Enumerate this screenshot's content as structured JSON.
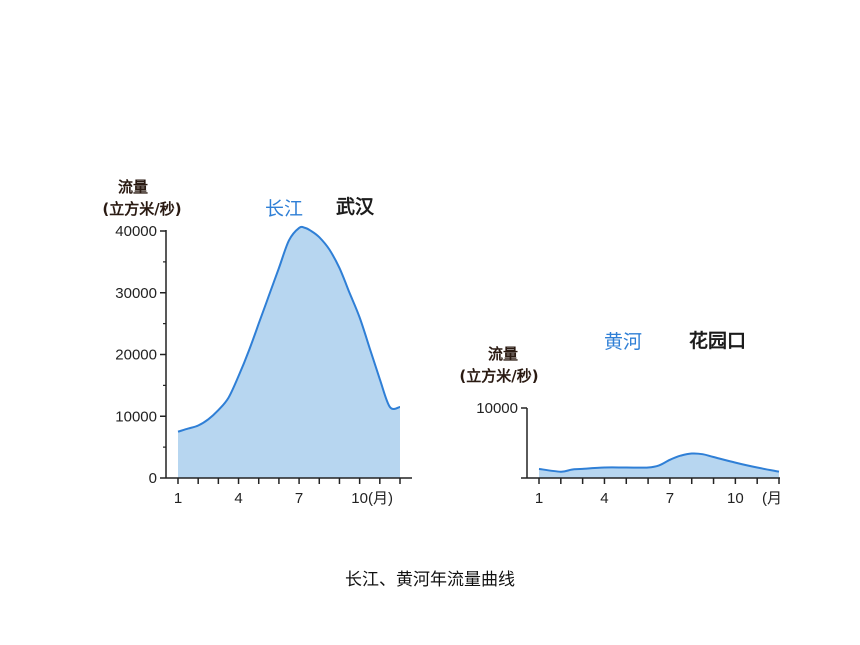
{
  "caption": "长江、黄河年流量曲线",
  "chart_data": [
    {
      "type": "area",
      "river": "长江",
      "station": "武汉",
      "ylabel_line1": "流量",
      "ylabel_line2": "(立方米/秒)",
      "xlabel": "(月)",
      "x": [
        1,
        1.5,
        2,
        2.5,
        3,
        3.5,
        4,
        4.5,
        5,
        5.5,
        6,
        6.5,
        7,
        7.3,
        7.6,
        8,
        8.5,
        9,
        9.5,
        10,
        10.5,
        11,
        11.5,
        12
      ],
      "y": [
        7500,
        8000,
        8500,
        9500,
        11000,
        13000,
        16500,
        20500,
        25000,
        29500,
        34000,
        38500,
        40500,
        40500,
        40000,
        39000,
        37000,
        34000,
        30000,
        26000,
        21000,
        16000,
        11500,
        11500
      ],
      "y_ticks": [
        {
          "v": 0,
          "label": "0"
        },
        {
          "v": 10000,
          "label": "10000"
        },
        {
          "v": 20000,
          "label": "20000"
        },
        {
          "v": 30000,
          "label": "30000"
        },
        {
          "v": 40000,
          "label": "40000"
        }
      ],
      "x_ticks": [
        {
          "v": 1,
          "label": "1"
        },
        {
          "v": 4,
          "label": "4"
        },
        {
          "v": 7,
          "label": "7"
        },
        {
          "v": 10,
          "label": "10"
        }
      ],
      "ylim": [
        0,
        40000
      ],
      "xlim": [
        1,
        12
      ],
      "line_color": "#2f7fd6",
      "fill_color": "#b7d6f0"
    },
    {
      "type": "area",
      "river": "黄河",
      "station": "花园口",
      "ylabel_line1": "流量",
      "ylabel_line2": "(立方米/秒)",
      "xlabel": "(月",
      "x": [
        1,
        2,
        2.5,
        3,
        4,
        5,
        6,
        6.5,
        7,
        7.5,
        8,
        8.5,
        9,
        10,
        11,
        12
      ],
      "y": [
        1300,
        900,
        1200,
        1300,
        1500,
        1500,
        1500,
        1800,
        2600,
        3200,
        3500,
        3400,
        3000,
        2200,
        1500,
        900
      ],
      "y_ticks": [
        {
          "v": 0,
          "label": ""
        },
        {
          "v": 10000,
          "label": "10000"
        }
      ],
      "x_ticks": [
        {
          "v": 1,
          "label": "1"
        },
        {
          "v": 4,
          "label": "4"
        },
        {
          "v": 7,
          "label": "7"
        },
        {
          "v": 10,
          "label": "10"
        }
      ],
      "ylim": [
        0,
        10000
      ],
      "xlim": [
        1,
        12
      ],
      "line_color": "#2f7fd6",
      "fill_color": "#b7d6f0"
    }
  ]
}
